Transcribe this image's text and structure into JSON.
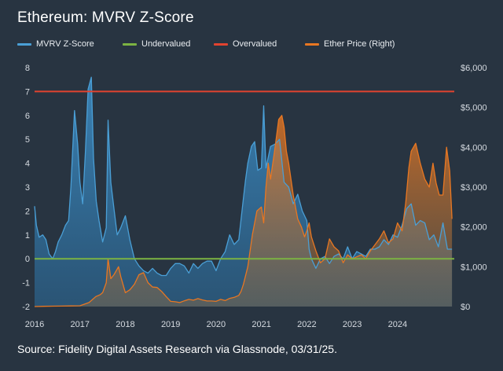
{
  "title": "Ethereum: MVRV Z-Score",
  "source": "Source: Fidelity Digital Assets Research via Glassnode, 03/31/25.",
  "legend": [
    {
      "label": "MVRV Z-Score",
      "color": "#4a9fd6"
    },
    {
      "label": "Undervalued",
      "color": "#7cb342"
    },
    {
      "label": "Overvalued",
      "color": "#e2432f"
    },
    {
      "label": "Ether Price (Right)",
      "color": "#e87722"
    }
  ],
  "colors": {
    "background": "#283441",
    "zscore": "#4a9fd6",
    "price": "#e87722",
    "undervalued": "#7cb342",
    "overvalued": "#e2432f",
    "axis_text": "#d6dbe1"
  },
  "chart_data": {
    "type": "area",
    "title": "Ethereum: MVRV Z-Score",
    "x_ticks": [
      "2016",
      "2017",
      "2018",
      "2019",
      "2020",
      "2021",
      "2022",
      "2023",
      "2024"
    ],
    "x_range": [
      2016.0,
      2025.25
    ],
    "y_left": {
      "range": [
        -2,
        8
      ],
      "ticks": [
        "-2",
        "-1",
        "0",
        "1",
        "2",
        "3",
        "4",
        "5",
        "6",
        "7",
        "8"
      ]
    },
    "y_right": {
      "range": [
        0,
        6000
      ],
      "ticks": [
        "$0",
        "$1,000",
        "$2,000",
        "$3,000",
        "$4,000",
        "$5,000",
        "$6,000"
      ]
    },
    "thresholds": {
      "undervalued": 0,
      "overvalued": 7
    },
    "series": [
      {
        "name": "MVRV Z-Score",
        "axis": "left",
        "x": [
          2016.0,
          2016.04,
          2016.1,
          2016.18,
          2016.25,
          2016.32,
          2016.4,
          2016.46,
          2016.52,
          2016.6,
          2016.68,
          2016.75,
          2016.8,
          2016.88,
          2016.95,
          2017.0,
          2017.06,
          2017.12,
          2017.18,
          2017.25,
          2017.3,
          2017.36,
          2017.42,
          2017.5,
          2017.58,
          2017.62,
          2017.68,
          2017.75,
          2017.82,
          2017.9,
          2018.0,
          2018.1,
          2018.2,
          2018.3,
          2018.4,
          2018.5,
          2018.6,
          2018.7,
          2018.8,
          2018.9,
          2019.0,
          2019.1,
          2019.2,
          2019.3,
          2019.4,
          2019.5,
          2019.6,
          2019.7,
          2019.8,
          2019.9,
          2020.0,
          2020.1,
          2020.2,
          2020.3,
          2020.4,
          2020.5,
          2020.6,
          2020.65,
          2020.7,
          2020.78,
          2020.85,
          2020.92,
          2021.0,
          2021.05,
          2021.1,
          2021.2,
          2021.3,
          2021.4,
          2021.5,
          2021.6,
          2021.7,
          2021.8,
          2021.9,
          2022.0,
          2022.05,
          2022.1,
          2022.2,
          2022.3,
          2022.4,
          2022.5,
          2022.6,
          2022.7,
          2022.8,
          2022.9,
          2023.0,
          2023.1,
          2023.2,
          2023.3,
          2023.4,
          2023.5,
          2023.6,
          2023.7,
          2023.8,
          2023.9,
          2024.0,
          2024.1,
          2024.2,
          2024.3,
          2024.4,
          2024.5,
          2024.6,
          2024.7,
          2024.8,
          2024.9,
          2025.0,
          2025.1,
          2025.2
        ],
        "values": [
          2.2,
          1.4,
          0.9,
          1.0,
          0.8,
          0.2,
          0.0,
          0.3,
          0.7,
          1.0,
          1.4,
          1.6,
          3.0,
          6.2,
          4.8,
          3.2,
          2.3,
          4.5,
          7.1,
          7.6,
          4.2,
          2.4,
          1.6,
          0.7,
          1.3,
          5.8,
          3.2,
          2.1,
          1.0,
          1.3,
          1.8,
          0.8,
          0.0,
          -0.3,
          -0.5,
          -0.6,
          -0.4,
          -0.6,
          -0.7,
          -0.7,
          -0.4,
          -0.2,
          -0.2,
          -0.3,
          -0.6,
          -0.2,
          -0.4,
          -0.2,
          -0.1,
          -0.1,
          -0.5,
          0.0,
          0.3,
          1.0,
          0.6,
          0.8,
          2.5,
          3.3,
          4.0,
          4.7,
          4.9,
          3.7,
          3.8,
          6.4,
          3.8,
          4.7,
          4.8,
          5.0,
          3.2,
          3.0,
          2.3,
          2.7,
          2.0,
          1.6,
          0.4,
          0.0,
          -0.4,
          0.0,
          0.1,
          -0.2,
          0.1,
          0.2,
          0.0,
          0.5,
          0.0,
          0.3,
          0.2,
          0.1,
          0.4,
          0.4,
          0.5,
          0.8,
          0.6,
          1.0,
          0.9,
          1.4,
          2.1,
          2.3,
          1.4,
          1.6,
          1.5,
          0.8,
          1.0,
          0.5,
          1.5,
          0.4,
          0.4
        ]
      },
      {
        "name": "Ether Price (Right)",
        "axis": "right",
        "x": [
          2016.0,
          2016.2,
          2016.4,
          2016.6,
          2016.8,
          2017.0,
          2017.2,
          2017.35,
          2017.45,
          2017.5,
          2017.58,
          2017.62,
          2017.68,
          2017.75,
          2017.85,
          2017.9,
          2018.0,
          2018.1,
          2018.2,
          2018.3,
          2018.4,
          2018.5,
          2018.6,
          2018.7,
          2018.8,
          2018.9,
          2019.0,
          2019.1,
          2019.2,
          2019.3,
          2019.4,
          2019.5,
          2019.6,
          2019.7,
          2019.8,
          2019.9,
          2020.0,
          2020.1,
          2020.2,
          2020.3,
          2020.4,
          2020.5,
          2020.55,
          2020.6,
          2020.7,
          2020.8,
          2020.9,
          2021.0,
          2021.05,
          2021.1,
          2021.15,
          2021.2,
          2021.3,
          2021.38,
          2021.45,
          2021.5,
          2021.55,
          2021.6,
          2021.7,
          2021.8,
          2021.88,
          2021.95,
          2022.0,
          2022.05,
          2022.1,
          2022.2,
          2022.3,
          2022.4,
          2022.5,
          2022.6,
          2022.7,
          2022.8,
          2022.9,
          2023.0,
          2023.1,
          2023.2,
          2023.3,
          2023.4,
          2023.5,
          2023.6,
          2023.7,
          2023.8,
          2023.9,
          2024.0,
          2024.1,
          2024.18,
          2024.25,
          2024.3,
          2024.4,
          2024.5,
          2024.6,
          2024.7,
          2024.78,
          2024.85,
          2024.92,
          2025.0,
          2025.08,
          2025.15,
          2025.2
        ],
        "values": [
          0,
          5,
          10,
          12,
          15,
          20,
          100,
          250,
          300,
          350,
          600,
          1200,
          700,
          800,
          1000,
          750,
          350,
          420,
          560,
          800,
          850,
          600,
          490,
          480,
          380,
          250,
          130,
          120,
          100,
          145,
          180,
          160,
          200,
          165,
          140,
          140,
          130,
          180,
          150,
          205,
          230,
          280,
          380,
          550,
          1000,
          1800,
          2400,
          2500,
          2100,
          3000,
          3600,
          3200,
          4000,
          4700,
          4800,
          4500,
          3900,
          3600,
          2800,
          2200,
          2000,
          1750,
          1900,
          2100,
          1750,
          1400,
          1100,
          1200,
          1700,
          1500,
          1400,
          1100,
          1300,
          1200,
          1250,
          1300,
          1200,
          1400,
          1550,
          1700,
          1900,
          1600,
          1700,
          2100,
          1900,
          2600,
          3500,
          3900,
          4100,
          3600,
          3200,
          3000,
          3600,
          3100,
          2800,
          2800,
          4000,
          3400,
          2200
        ]
      }
    ],
    "style": {
      "grid": false,
      "legend_position": "top"
    }
  }
}
